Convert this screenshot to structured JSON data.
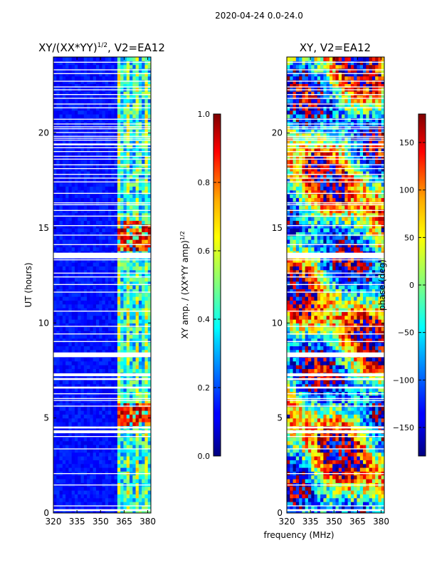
{
  "figure_title": "2020-04-24 0.0-24.0",
  "shared_xlabel": "frequency (MHz)",
  "chart_data": [
    {
      "type": "heatmap",
      "title": "XY/(XX*YY)^1/2, V2=EA12",
      "title_base": "XY/(XX*YY)",
      "title_sup": "1/2",
      "title_tail": ", V2=EA12",
      "xlabel": "",
      "ylabel": "UT (hours)",
      "xlim": [
        320,
        382
      ],
      "ylim": [
        0,
        24
      ],
      "xticks": [
        320,
        335,
        350,
        365,
        380
      ],
      "yticks": [
        0,
        5,
        10,
        15,
        20
      ],
      "quantity": "normalized amplitude",
      "bright_band_mhz": [
        359,
        382
      ],
      "high_amplitude_bursts_ut": [
        [
          4.5,
          5.8
        ],
        [
          13.8,
          15.4
        ]
      ],
      "colorbar": {
        "label": "XY amp. / (XX*YY amp)^1/2",
        "label_base": "XY amp. / (XX*YY amp)",
        "label_sup": "1/2",
        "range": [
          0.0,
          1.0
        ],
        "ticks": [
          "0.0",
          "0.2",
          "0.4",
          "0.6",
          "0.8",
          "1.0"
        ],
        "tick_values": [
          0.0,
          0.2,
          0.4,
          0.6,
          0.8,
          1.0
        ]
      }
    },
    {
      "type": "heatmap",
      "title": "XY, V2=EA12",
      "xlabel": "frequency (MHz)",
      "ylabel": "",
      "xlim": [
        320,
        382
      ],
      "ylim": [
        0,
        24
      ],
      "xticks": [
        320,
        335,
        350,
        365,
        380
      ],
      "yticks": [
        0,
        5,
        10,
        15,
        20
      ],
      "quantity": "phase",
      "colorbar": {
        "label": "phase (deg)",
        "range": [
          -180,
          180
        ],
        "ticks": [
          "−150",
          "−100",
          "−50",
          "0",
          "50",
          "100",
          "150"
        ],
        "tick_values": [
          -150,
          -100,
          -50,
          0,
          50,
          100,
          150
        ]
      }
    }
  ],
  "flagged_gaps_ut": [
    0.1,
    0.35,
    1.45,
    2.05,
    3.35,
    4.0,
    4.2,
    4.45,
    5.6,
    5.9,
    6.0,
    6.25,
    6.55,
    6.6,
    7.0,
    7.2,
    8.2,
    8.4,
    9.0,
    9.4,
    9.8,
    10.6,
    11.6,
    12.0,
    12.4,
    12.6,
    13.3,
    13.4,
    13.5,
    13.6,
    14.1,
    14.6,
    15.1,
    15.6,
    15.9,
    16.2,
    16.3,
    16.8,
    17.4,
    17.6,
    17.8,
    18.1,
    18.3,
    18.6,
    18.75,
    19.0,
    19.2,
    19.35,
    19.4,
    19.6,
    19.7,
    19.8,
    20.0,
    20.2,
    20.3,
    20.45,
    20.7,
    21.3,
    21.5,
    21.8,
    22.0,
    22.25,
    22.4,
    22.7,
    23.1,
    23.3,
    23.7
  ],
  "flagged_gap_heights_ut": [
    0.1,
    0.05,
    0.05,
    0.05,
    0.05,
    0.05,
    0.15,
    0.1,
    0.05,
    0.05,
    0.05,
    0.05,
    0.05,
    0.05,
    0.1,
    0.15,
    0.2,
    0.05,
    0.05,
    0.05,
    0.05,
    0.05,
    0.05,
    0.05,
    0.05,
    0.05,
    0.05,
    0.1,
    0.15,
    0.1,
    0.05,
    0.05,
    0.05,
    0.05,
    0.05,
    0.05,
    0.05,
    0.05,
    0.05,
    0.05,
    0.05,
    0.05,
    0.05,
    0.05,
    0.05,
    0.05,
    0.05,
    0.05,
    0.05,
    0.05,
    0.05,
    0.05,
    0.05,
    0.05,
    0.05,
    0.05,
    0.05,
    0.05,
    0.05,
    0.05,
    0.05,
    0.05,
    0.05,
    0.05,
    0.05,
    0.05,
    0.05
  ]
}
